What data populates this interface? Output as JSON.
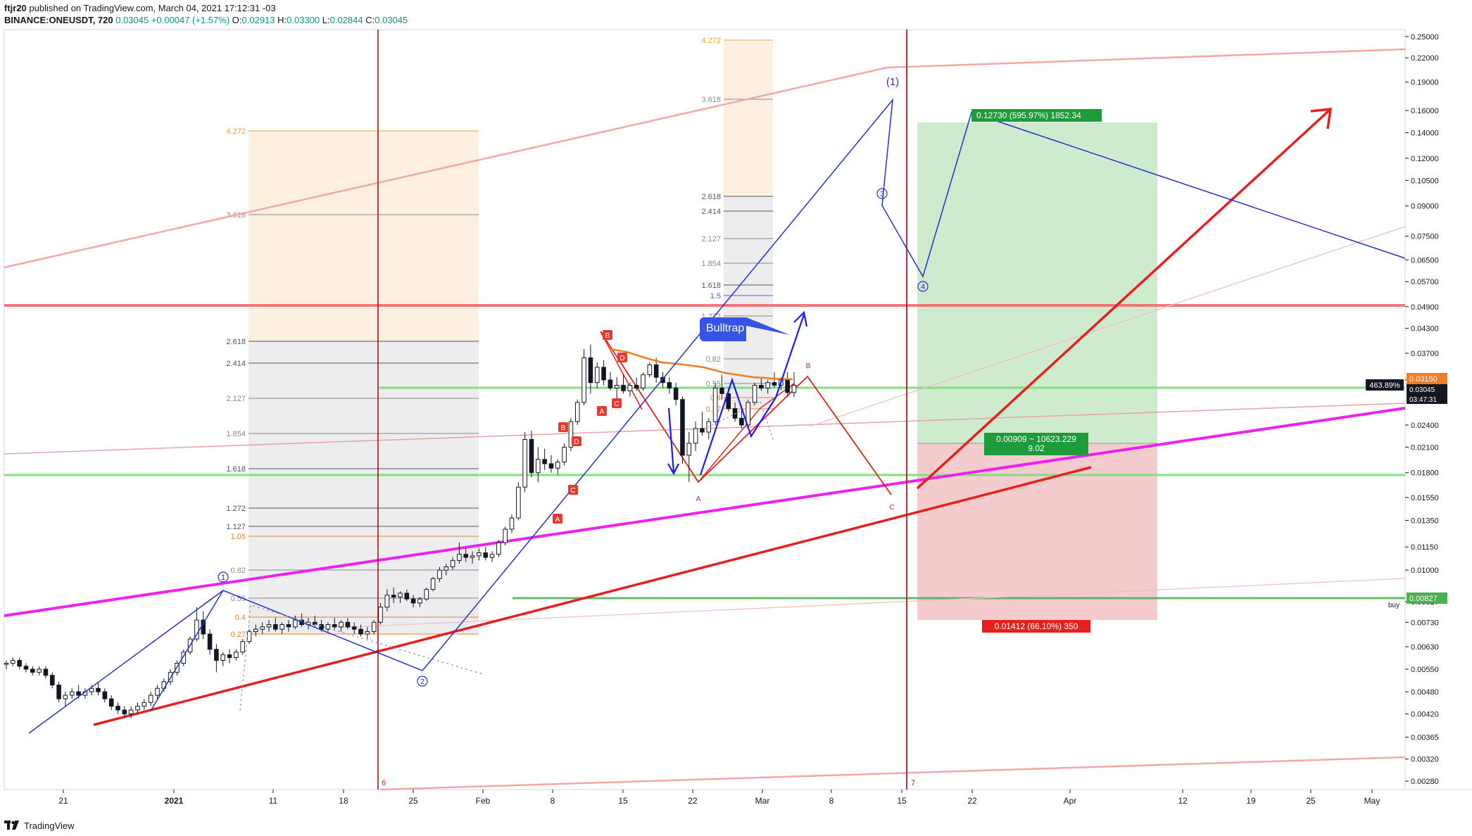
{
  "header": {
    "publisher": "ftjr20",
    "published_text": "published on TradingView.com, March 04, 2021 17:12:31 -03",
    "symbol": "BINANCE:ONEUSDT, 720",
    "last": "0.03045",
    "change": "+0.00047 (+1.57%)",
    "o_label": "O:",
    "o_value": "0.02913",
    "h_label": "H:",
    "h_value": "0.03300",
    "l_label": "L:",
    "l_value": "0.02844",
    "c_label": "C:",
    "c_value": "0.03045"
  },
  "footer": {
    "brand": "TradingView"
  },
  "colors": {
    "up": "#ffffff",
    "down": "#131722",
    "magenta": "#ee22ee",
    "red": "#e8201d",
    "blue": "#2233cc",
    "green_line": "#7fe27f",
    "long_zone": "#c9e9c9",
    "short_zone": "#f3c7c9"
  },
  "chart_data": {
    "type": "candlestick",
    "symbol": "BINANCE:ONEUSDT",
    "interval": "720",
    "scale": "log",
    "y_ticks": [
      "0.25000",
      "0.22000",
      "0.19000",
      "0.16000",
      "0.14000",
      "0.12000",
      "0.10500",
      "0.09000",
      "0.07500",
      "0.06500",
      "0.05700",
      "0.04900",
      "0.04300",
      "0.03700",
      "0.03150",
      "0.02400",
      "0.02100",
      "0.01800",
      "0.01550",
      "0.01350",
      "0.01150",
      "0.01000",
      "0.00827",
      "0.00730",
      "0.00630",
      "0.00550",
      "0.00480",
      "0.00420",
      "0.00365",
      "0.00320",
      "0.00280"
    ],
    "x_ticks": [
      "21",
      "2021",
      "11",
      "18",
      "25",
      "Feb",
      "8",
      "15",
      "22",
      "Mar",
      "8",
      "15",
      "22",
      "Apr",
      "12",
      "19",
      "25",
      "May"
    ],
    "price_tags": {
      "current": "0.03150",
      "current_extra": "0.03045",
      "countdown": "03:47:31",
      "percent": "463.89%",
      "buy_level": "0.00827",
      "buy_label": "buy"
    },
    "position": {
      "target_label": "0.12730 (595.97%) 1852.34",
      "stop_label": "0.01412 (66.10%) 350",
      "ratio_label": "0.00909 ~ 10623.229",
      "ratio_value": "9.02"
    },
    "fib_left": [
      "4.272",
      "3.618",
      "2.618",
      "2.414",
      "2.127",
      "1.854",
      "1.618",
      "1.272",
      "1.127",
      "1.05",
      "0.82",
      "0.55",
      "0.4",
      "0.27"
    ],
    "fib_right": [
      "4.272",
      "3.618",
      "2.618",
      "2.414",
      "2.127",
      "1.854",
      "1.618",
      "1.5",
      "1.272",
      "0.82",
      "0.55",
      "0.4",
      "0.27"
    ],
    "annotation": "Bulltrap",
    "wave_labels": [
      "(1)",
      "1",
      "2",
      "3",
      "4"
    ],
    "abc_labels": [
      "A",
      "B",
      "C"
    ],
    "harmonic_labels": [
      "A",
      "B",
      "C",
      "D"
    ],
    "cycle_labels": [
      "6",
      "7"
    ],
    "candles": [
      [
        0.0057,
        0.0058,
        0.0055,
        0.0057
      ],
      [
        0.0057,
        0.0059,
        0.0056,
        0.0058
      ],
      [
        0.0058,
        0.0059,
        0.0055,
        0.0056
      ],
      [
        0.0056,
        0.0057,
        0.0054,
        0.0055
      ],
      [
        0.0055,
        0.0056,
        0.0053,
        0.0054
      ],
      [
        0.0054,
        0.0056,
        0.0053,
        0.0055
      ],
      [
        0.0055,
        0.0056,
        0.0052,
        0.0053
      ],
      [
        0.0053,
        0.0054,
        0.0049,
        0.005
      ],
      [
        0.005,
        0.0051,
        0.0045,
        0.0046
      ],
      [
        0.0046,
        0.0048,
        0.0044,
        0.0047
      ],
      [
        0.0047,
        0.0049,
        0.0046,
        0.0048
      ],
      [
        0.0048,
        0.005,
        0.0046,
        0.0047
      ],
      [
        0.0047,
        0.0049,
        0.0046,
        0.0048
      ],
      [
        0.0048,
        0.005,
        0.0047,
        0.0049
      ],
      [
        0.0049,
        0.0051,
        0.0047,
        0.0048
      ],
      [
        0.0048,
        0.0049,
        0.0045,
        0.0046
      ],
      [
        0.0046,
        0.0047,
        0.0043,
        0.0044
      ],
      [
        0.0044,
        0.0045,
        0.0042,
        0.0043
      ],
      [
        0.0043,
        0.0044,
        0.0041,
        0.0042
      ],
      [
        0.0042,
        0.0044,
        0.0041,
        0.0043
      ],
      [
        0.0043,
        0.0045,
        0.0042,
        0.0044
      ],
      [
        0.0044,
        0.0046,
        0.0043,
        0.0045
      ],
      [
        0.0045,
        0.0048,
        0.0044,
        0.0047
      ],
      [
        0.0047,
        0.005,
        0.0046,
        0.0049
      ],
      [
        0.0049,
        0.0052,
        0.0048,
        0.0051
      ],
      [
        0.0051,
        0.0055,
        0.005,
        0.0054
      ],
      [
        0.0054,
        0.0058,
        0.0053,
        0.0057
      ],
      [
        0.0057,
        0.0062,
        0.0056,
        0.0061
      ],
      [
        0.0061,
        0.0067,
        0.006,
        0.0066
      ],
      [
        0.0066,
        0.008,
        0.0065,
        0.0074
      ],
      [
        0.0074,
        0.0078,
        0.0066,
        0.0068
      ],
      [
        0.0068,
        0.007,
        0.006,
        0.0062
      ],
      [
        0.0062,
        0.0064,
        0.0054,
        0.0058
      ],
      [
        0.0058,
        0.0061,
        0.0056,
        0.006
      ],
      [
        0.006,
        0.0062,
        0.0057,
        0.0059
      ],
      [
        0.0059,
        0.0062,
        0.0058,
        0.0061
      ],
      [
        0.0061,
        0.0066,
        0.006,
        0.0065
      ],
      [
        0.0065,
        0.007,
        0.0064,
        0.0069
      ],
      [
        0.0069,
        0.0072,
        0.0067,
        0.007
      ],
      [
        0.007,
        0.0073,
        0.0068,
        0.0071
      ],
      [
        0.0071,
        0.0074,
        0.0069,
        0.0072
      ],
      [
        0.0072,
        0.0075,
        0.0069,
        0.007
      ],
      [
        0.007,
        0.0073,
        0.0068,
        0.0072
      ],
      [
        0.0072,
        0.0074,
        0.0069,
        0.0071
      ],
      [
        0.0071,
        0.0076,
        0.007,
        0.0074
      ],
      [
        0.0074,
        0.0077,
        0.0071,
        0.0072
      ],
      [
        0.0072,
        0.0075,
        0.007,
        0.0073
      ],
      [
        0.0073,
        0.0076,
        0.0071,
        0.0072
      ],
      [
        0.0072,
        0.0074,
        0.0069,
        0.007
      ],
      [
        0.007,
        0.0073,
        0.0069,
        0.0072
      ],
      [
        0.0072,
        0.0075,
        0.007,
        0.0071
      ],
      [
        0.0071,
        0.0074,
        0.0069,
        0.0073
      ],
      [
        0.0073,
        0.0075,
        0.007,
        0.0071
      ],
      [
        0.0071,
        0.0073,
        0.0068,
        0.007
      ],
      [
        0.007,
        0.0072,
        0.0067,
        0.0068
      ],
      [
        0.0068,
        0.0071,
        0.0066,
        0.0069
      ],
      [
        0.0069,
        0.0074,
        0.0068,
        0.0073
      ],
      [
        0.0073,
        0.0082,
        0.0072,
        0.008
      ],
      [
        0.008,
        0.0089,
        0.0078,
        0.0086
      ],
      [
        0.0086,
        0.009,
        0.0082,
        0.0085
      ],
      [
        0.0085,
        0.0088,
        0.0082,
        0.0087
      ],
      [
        0.0087,
        0.0089,
        0.0083,
        0.0084
      ],
      [
        0.0084,
        0.0086,
        0.008,
        0.0082
      ],
      [
        0.0082,
        0.0085,
        0.008,
        0.0084
      ],
      [
        0.0084,
        0.009,
        0.0083,
        0.0089
      ],
      [
        0.0089,
        0.0096,
        0.0088,
        0.0095
      ],
      [
        0.0095,
        0.0102,
        0.0093,
        0.01
      ],
      [
        0.01,
        0.0104,
        0.0097,
        0.0102
      ],
      [
        0.0102,
        0.0108,
        0.01,
        0.0106
      ],
      [
        0.0106,
        0.0118,
        0.0104,
        0.011
      ],
      [
        0.011,
        0.0114,
        0.0105,
        0.0108
      ],
      [
        0.0108,
        0.0112,
        0.0104,
        0.0109
      ],
      [
        0.0109,
        0.0114,
        0.0106,
        0.0111
      ],
      [
        0.0111,
        0.0115,
        0.0106,
        0.0108
      ],
      [
        0.0108,
        0.0112,
        0.0105,
        0.011
      ],
      [
        0.011,
        0.012,
        0.0108,
        0.0118
      ],
      [
        0.0118,
        0.013,
        0.0116,
        0.0128
      ],
      [
        0.0128,
        0.014,
        0.0125,
        0.0137
      ],
      [
        0.0137,
        0.017,
        0.0135,
        0.0165
      ],
      [
        0.0165,
        0.023,
        0.016,
        0.022
      ],
      [
        0.022,
        0.0232,
        0.0175,
        0.018
      ],
      [
        0.018,
        0.021,
        0.017,
        0.0195
      ],
      [
        0.0195,
        0.0208,
        0.0183,
        0.019
      ],
      [
        0.019,
        0.02,
        0.018,
        0.0185
      ],
      [
        0.0185,
        0.0195,
        0.0178,
        0.0192
      ],
      [
        0.0192,
        0.0215,
        0.0188,
        0.021
      ],
      [
        0.021,
        0.025,
        0.0205,
        0.0245
      ],
      [
        0.0245,
        0.028,
        0.024,
        0.0275
      ],
      [
        0.0275,
        0.038,
        0.027,
        0.036
      ],
      [
        0.036,
        0.039,
        0.029,
        0.031
      ],
      [
        0.031,
        0.035,
        0.03,
        0.034
      ],
      [
        0.034,
        0.0355,
        0.0305,
        0.0315
      ],
      [
        0.0315,
        0.033,
        0.0295,
        0.03
      ],
      [
        0.03,
        0.032,
        0.028,
        0.0305
      ],
      [
        0.0305,
        0.0325,
        0.029,
        0.0295
      ],
      [
        0.0295,
        0.031,
        0.0285,
        0.0305
      ],
      [
        0.0305,
        0.032,
        0.0295,
        0.03
      ],
      [
        0.03,
        0.033,
        0.0295,
        0.0325
      ],
      [
        0.0325,
        0.035,
        0.032,
        0.0345
      ],
      [
        0.0345,
        0.036,
        0.031,
        0.032
      ],
      [
        0.032,
        0.033,
        0.03,
        0.031
      ],
      [
        0.031,
        0.032,
        0.029,
        0.03
      ],
      [
        0.03,
        0.031,
        0.027,
        0.028
      ],
      [
        0.028,
        0.0285,
        0.019,
        0.02
      ],
      [
        0.02,
        0.023,
        0.017,
        0.0215
      ],
      [
        0.0215,
        0.0245,
        0.0205,
        0.0235
      ],
      [
        0.0235,
        0.026,
        0.0225,
        0.023
      ],
      [
        0.023,
        0.025,
        0.022,
        0.0245
      ],
      [
        0.0245,
        0.031,
        0.024,
        0.03
      ],
      [
        0.03,
        0.0325,
        0.028,
        0.029
      ],
      [
        0.029,
        0.03,
        0.026,
        0.0265
      ],
      [
        0.0265,
        0.0275,
        0.0245,
        0.025
      ],
      [
        0.025,
        0.027,
        0.0235,
        0.024
      ],
      [
        0.024,
        0.028,
        0.0235,
        0.0275
      ],
      [
        0.0275,
        0.031,
        0.027,
        0.0305
      ],
      [
        0.0305,
        0.032,
        0.0295,
        0.03
      ],
      [
        0.03,
        0.0315,
        0.029,
        0.031
      ],
      [
        0.031,
        0.033,
        0.03,
        0.0305
      ],
      [
        0.0305,
        0.032,
        0.0295,
        0.0315
      ],
      [
        0.0315,
        0.033,
        0.0284,
        0.0292
      ],
      [
        0.0292,
        0.033,
        0.0284,
        0.0305
      ]
    ]
  }
}
